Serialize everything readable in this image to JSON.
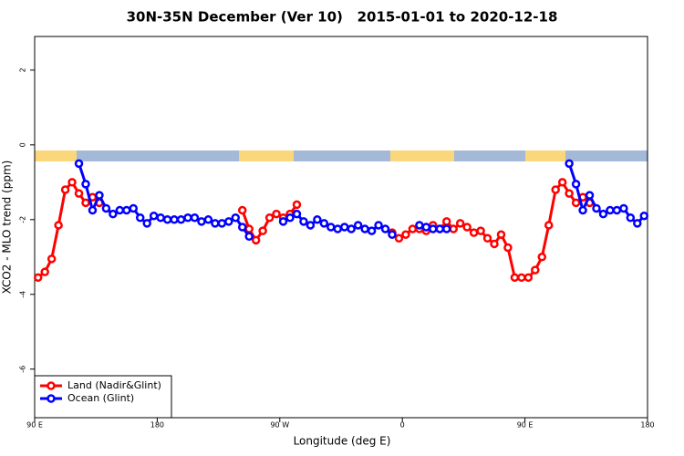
{
  "chart_data": {
    "type": "line",
    "title": "30N-35N December (Ver 10)   2015-01-01 to 2020-12-18",
    "x_label": "Longitude (deg E)",
    "y_label": "XCO2 - MLO trend (ppm)",
    "xlim": [
      90,
      540
    ],
    "ylim": [
      -7.3,
      2.9
    ],
    "xticks": [
      {
        "value": 90,
        "label": "90 E"
      },
      180,
      {
        "value": 270,
        "label": "90 W"
      },
      {
        "value": 360,
        "label": "0"
      },
      {
        "value": 450,
        "label": "90 E"
      },
      {
        "value": 540,
        "label": "180"
      }
    ],
    "yticks": [
      2,
      0,
      -2,
      -4,
      -6
    ],
    "legend": "bottom-left",
    "series": [
      {
        "name": "Land (Nadir&Glint)",
        "color": "#ff0000",
        "x": [
          92.5,
          97.5,
          102.5,
          107.5,
          112.5,
          117.5,
          122.5,
          127.5,
          132.5,
          137.5,
          null,
          242.5,
          247.5,
          252.5,
          257.5,
          262.5,
          267.5,
          272.5,
          277.5,
          282.5,
          null,
          352.5,
          357.5,
          362.5,
          367.5,
          372.5,
          377.5,
          382.5,
          387.5,
          392.5,
          397.5,
          402.5,
          407.5,
          412.5,
          417.5,
          422.5,
          427.5,
          432.5,
          437.5,
          442.5,
          447.5,
          452.5,
          457.5,
          462.5,
          467.5,
          472.5,
          477.5,
          482.5,
          487.5,
          492.5,
          497.5
        ],
        "values": [
          -3.55,
          -3.4,
          -3.05,
          -2.15,
          -1.2,
          -1.0,
          -1.3,
          -1.55,
          -1.4,
          -1.55,
          null,
          -1.75,
          -2.25,
          -2.55,
          -2.3,
          -1.95,
          -1.85,
          -1.95,
          -1.85,
          -1.6,
          null,
          -2.35,
          -2.5,
          -2.4,
          -2.25,
          -2.25,
          -2.3,
          -2.15,
          -2.25,
          -2.05,
          -2.25,
          -2.1,
          -2.2,
          -2.35,
          -2.3,
          -2.5,
          -2.65,
          -2.4,
          -2.75,
          -3.55,
          -3.55,
          -3.55,
          -3.35,
          -3.0,
          -2.15,
          -1.2,
          -1.0,
          -1.3,
          -1.55,
          -1.4,
          -1.55
        ]
      },
      {
        "name": "Ocean (Glint)",
        "color": "#0000ff",
        "x": [
          122.5,
          127.5,
          132.5,
          137.5,
          142.5,
          147.5,
          152.5,
          157.5,
          162.5,
          167.5,
          172.5,
          177.5,
          182.5,
          187.5,
          192.5,
          197.5,
          202.5,
          207.5,
          212.5,
          217.5,
          222.5,
          227.5,
          232.5,
          237.5,
          242.5,
          247.5,
          null,
          272.5,
          277.5,
          282.5,
          287.5,
          292.5,
          297.5,
          302.5,
          307.5,
          312.5,
          317.5,
          322.5,
          327.5,
          332.5,
          337.5,
          342.5,
          347.5,
          352.5,
          null,
          372.5,
          377.5,
          382.5,
          387.5,
          392.5,
          null,
          482.5,
          487.5,
          492.5,
          497.5,
          502.5,
          507.5,
          512.5,
          517.5,
          522.5,
          527.5,
          532.5,
          537.5
        ],
        "values": [
          -0.5,
          -1.05,
          -1.75,
          -1.35,
          -1.7,
          -1.85,
          -1.75,
          -1.75,
          -1.7,
          -1.95,
          -2.1,
          -1.9,
          -1.95,
          -2.0,
          -2.0,
          -2.0,
          -1.95,
          -1.95,
          -2.05,
          -2.0,
          -2.1,
          -2.1,
          -2.05,
          -1.95,
          -2.2,
          -2.45,
          null,
          -2.05,
          -1.95,
          -1.85,
          -2.05,
          -2.15,
          -2.0,
          -2.1,
          -2.2,
          -2.25,
          -2.2,
          -2.25,
          -2.15,
          -2.25,
          -2.3,
          -2.15,
          -2.25,
          -2.4,
          null,
          -2.15,
          -2.2,
          -2.25,
          -2.25,
          -2.25,
          null,
          -0.5,
          -1.05,
          -1.75,
          -1.35,
          -1.7,
          -1.85,
          -1.75,
          -1.75,
          -1.7,
          -1.95,
          -2.1,
          -1.9
        ]
      }
    ]
  }
}
